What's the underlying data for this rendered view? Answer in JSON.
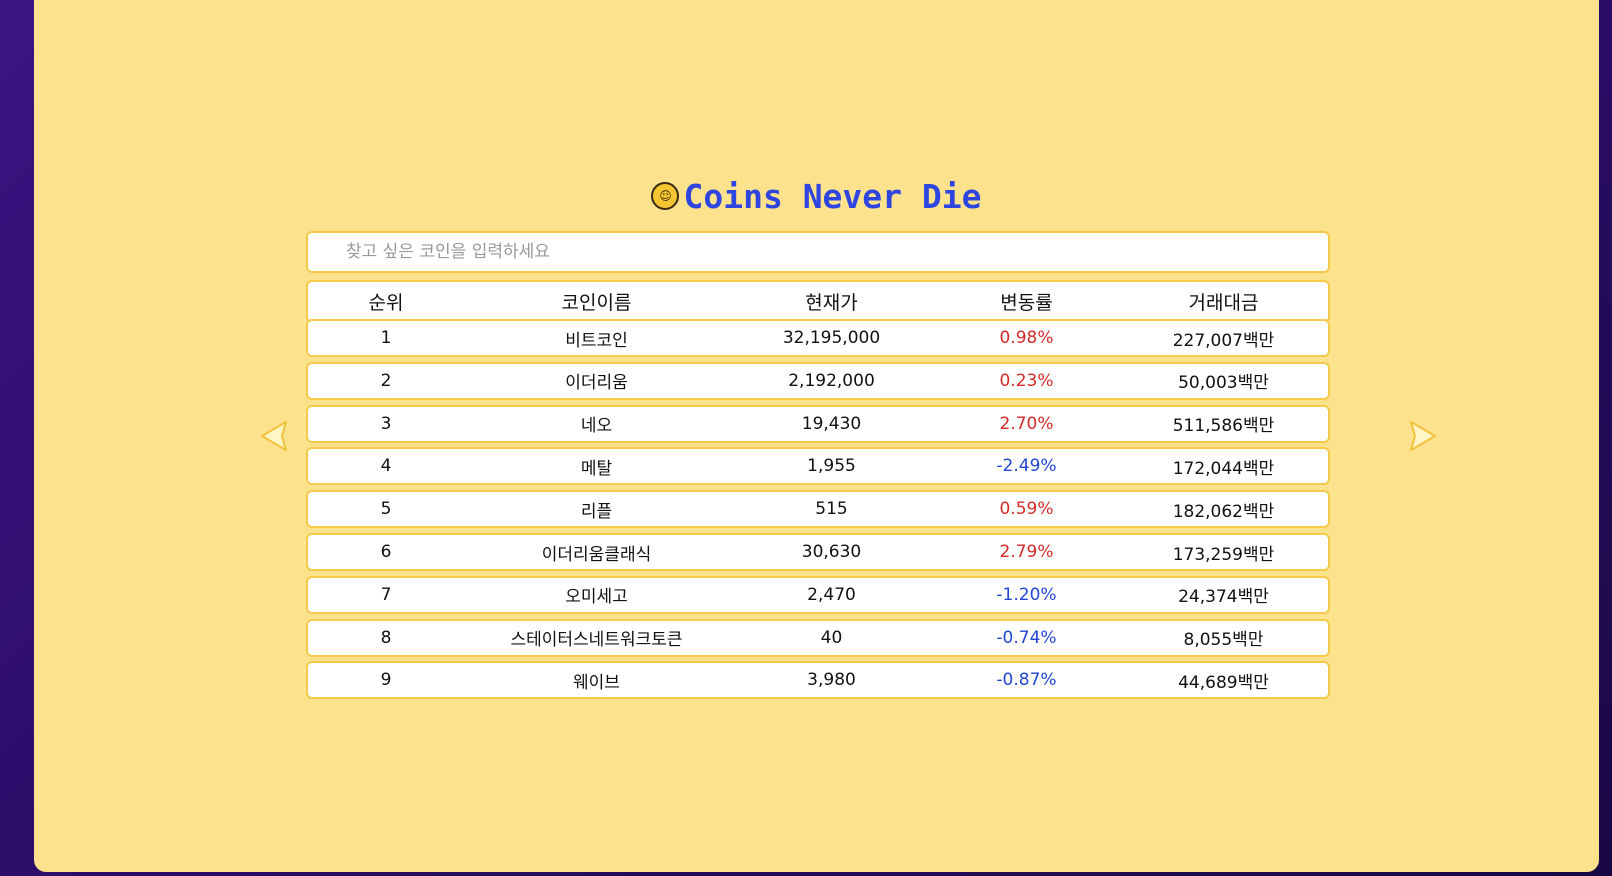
{
  "header": {
    "title": "Coins Never Die",
    "logo_icon": "coin-icon"
  },
  "search": {
    "placeholder": "찾고 싶은 코인을 입력하세요",
    "value": ""
  },
  "table": {
    "columns": [
      "순위",
      "코인이름",
      "현재가",
      "변동률",
      "거래대금"
    ],
    "rows": [
      {
        "rank": "1",
        "name": "비트코인",
        "price": "32,195,000",
        "change": "0.98%",
        "direction": "up",
        "volume": "227,007백만"
      },
      {
        "rank": "2",
        "name": "이더리움",
        "price": "2,192,000",
        "change": "0.23%",
        "direction": "up",
        "volume": "50,003백만"
      },
      {
        "rank": "3",
        "name": "네오",
        "price": "19,430",
        "change": "2.70%",
        "direction": "up",
        "volume": "511,586백만"
      },
      {
        "rank": "4",
        "name": "메탈",
        "price": "1,955",
        "change": "-2.49%",
        "direction": "down",
        "volume": "172,044백만"
      },
      {
        "rank": "5",
        "name": "리플",
        "price": "515",
        "change": "0.59%",
        "direction": "up",
        "volume": "182,062백만"
      },
      {
        "rank": "6",
        "name": "이더리움클래식",
        "price": "30,630",
        "change": "2.79%",
        "direction": "up",
        "volume": "173,259백만"
      },
      {
        "rank": "7",
        "name": "오미세고",
        "price": "2,470",
        "change": "-1.20%",
        "direction": "down",
        "volume": "24,374백만"
      },
      {
        "rank": "8",
        "name": "스테이터스네트워크토큰",
        "price": "40",
        "change": "-0.74%",
        "direction": "down",
        "volume": "8,055백만"
      },
      {
        "rank": "9",
        "name": "웨이브",
        "price": "3,980",
        "change": "-0.87%",
        "direction": "down",
        "volume": "44,689백만"
      }
    ]
  },
  "colors": {
    "background": "#fde28e",
    "title": "#2f45e0",
    "row_border": "#f5c94a",
    "positive": "#d42a2a",
    "negative": "#2246d6"
  },
  "nav": {
    "prev_icon": "arrow-left-icon",
    "next_icon": "arrow-right-icon"
  }
}
